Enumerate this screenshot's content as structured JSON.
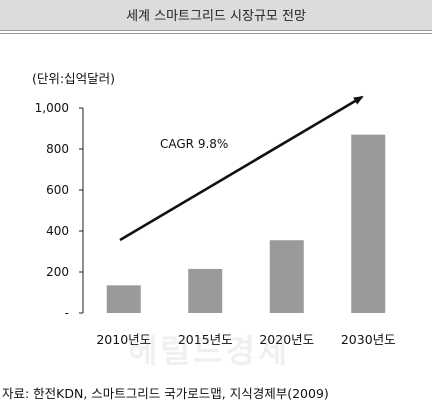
{
  "header": {
    "title": "세계 스마트그리드 시장규모 전망"
  },
  "unit_label": "(단위:십억달러)",
  "source_label": "자료: 한전KDN, 스마트그리드 국가로드맵, 지식경제부(2009)",
  "watermark": "헤럴드경제",
  "colors": {
    "bar": "#9a9a9a",
    "arrow": "#111111",
    "title_band": "#dcdcdc"
  },
  "chart_data": {
    "type": "bar",
    "title": "세계 스마트그리드 시장규모 전망",
    "categories": [
      "2010년도",
      "2015년도",
      "2020년도",
      "2030년도"
    ],
    "values": [
      135,
      215,
      355,
      870
    ],
    "ylabel": "(단위:십억달러)",
    "ylim": [
      0,
      1000
    ],
    "yticks": [
      "-",
      "200",
      "400",
      "600",
      "800",
      "1,000"
    ],
    "annotation": "CAGR 9.8%",
    "grid": false,
    "legend": "none"
  }
}
